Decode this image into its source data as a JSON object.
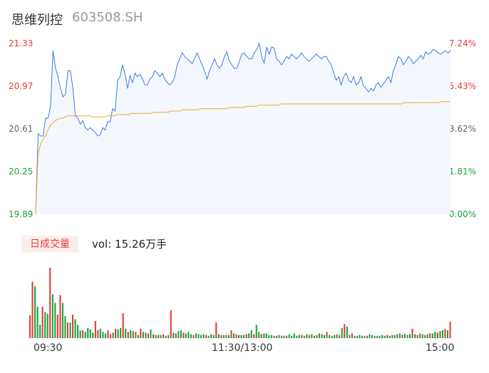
{
  "header": {
    "name": "思维列控",
    "code": "603508.SH"
  },
  "chart_data": {
    "type": "line",
    "price_axis": {
      "ticks": [
        "21.33",
        "20.97",
        "20.61",
        "20.25",
        "19.89"
      ],
      "min": 19.89,
      "max": 21.33
    },
    "pct_axis": {
      "ticks": [
        "7.24%",
        "5.43%",
        "3.62%",
        "1.81%",
        "0.00%"
      ]
    },
    "x_labels": [
      "09:30",
      "11:30/13:00",
      "15:00"
    ],
    "series": [
      {
        "role": "price",
        "color": "#3f7be0",
        "values": [
          19.89,
          20.57,
          20.55,
          20.55,
          20.7,
          20.7,
          20.8,
          21.27,
          21.12,
          21.05,
          20.95,
          20.88,
          20.9,
          21.1,
          21.1,
          20.95,
          20.72,
          20.7,
          20.65,
          20.68,
          20.62,
          20.6,
          20.62,
          20.6,
          20.58,
          20.55,
          20.56,
          20.62,
          20.6,
          20.67,
          20.67,
          20.78,
          20.76,
          21.02,
          21.05,
          21.15,
          21.07,
          20.95,
          21.06,
          21.0,
          21.08,
          21.05,
          21.07,
          21.03,
          20.98,
          20.98,
          21.03,
          21.05,
          21.1,
          21.08,
          21.05,
          21.08,
          21.03,
          21.0,
          20.98,
          21.0,
          21.05,
          21.15,
          21.2,
          21.25,
          21.22,
          21.2,
          21.18,
          21.16,
          21.2,
          21.25,
          21.2,
          21.15,
          21.1,
          21.03,
          21.1,
          21.15,
          21.2,
          21.15,
          21.12,
          21.15,
          21.22,
          21.26,
          21.18,
          21.15,
          21.12,
          21.12,
          21.18,
          21.24,
          21.25,
          21.22,
          21.2,
          21.2,
          21.25,
          21.28,
          21.33,
          21.22,
          21.16,
          21.3,
          21.24,
          21.3,
          21.29,
          21.2,
          21.18,
          21.15,
          21.18,
          21.22,
          21.2,
          21.24,
          21.22,
          21.2,
          21.22,
          21.25,
          21.22,
          21.2,
          21.18,
          21.2,
          21.22,
          21.24,
          21.22,
          21.2,
          21.22,
          21.22,
          21.18,
          21.15,
          21.08,
          21.02,
          21.05,
          20.98,
          21.05,
          21.08,
          21.02,
          21.0,
          21.05,
          20.98,
          21.0,
          21.05,
          20.97,
          20.95,
          20.92,
          20.95,
          20.93,
          20.98,
          21.0,
          20.96,
          20.99,
          21.02,
          21.05,
          21.0,
          21.1,
          21.15,
          21.22,
          21.2,
          21.15,
          21.18,
          21.22,
          21.2,
          21.16,
          21.18,
          21.2,
          21.23,
          21.2,
          21.26,
          21.24,
          21.25,
          21.28,
          21.27,
          21.25,
          21.24,
          21.25,
          21.27,
          21.25,
          21.27
        ]
      },
      {
        "role": "average",
        "color": "#f0a830",
        "values": [
          19.89,
          20.4,
          20.48,
          20.52,
          20.55,
          20.6,
          20.64,
          20.66,
          20.68,
          20.69,
          20.7,
          20.7,
          20.71,
          20.72,
          20.72,
          20.72,
          20.72,
          20.72,
          20.72,
          20.72,
          20.72,
          20.72,
          20.72,
          20.71,
          20.71,
          20.71,
          20.71,
          20.71,
          20.71,
          20.72,
          20.72,
          20.72,
          20.72,
          20.73,
          20.73,
          20.73,
          20.73,
          20.73,
          20.73,
          20.74,
          20.74,
          20.74,
          20.74,
          20.74,
          20.74,
          20.74,
          20.74,
          20.74,
          20.75,
          20.75,
          20.75,
          20.75,
          20.75,
          20.75,
          20.75,
          20.76,
          20.76,
          20.76,
          20.76,
          20.76,
          20.77,
          20.77,
          20.77,
          20.77,
          20.77,
          20.77,
          20.77,
          20.78,
          20.78,
          20.78,
          20.78,
          20.78,
          20.78,
          20.78,
          20.78,
          20.78,
          20.78,
          20.78,
          20.78,
          20.79,
          20.79,
          20.79,
          20.79,
          20.79,
          20.79,
          20.79,
          20.8,
          20.8,
          20.8,
          20.8,
          20.8,
          20.81,
          20.81,
          20.81,
          20.81,
          20.81,
          20.81,
          20.81,
          20.81,
          20.81,
          20.82,
          20.82,
          20.82,
          20.82,
          20.82,
          20.82,
          20.82,
          20.82,
          20.82,
          20.82,
          20.82,
          20.82,
          20.82,
          20.82,
          20.82,
          20.82,
          20.82,
          20.82,
          20.82,
          20.82,
          20.82,
          20.82,
          20.82,
          20.82,
          20.82,
          20.82,
          20.82,
          20.82,
          20.82,
          20.82,
          20.82,
          20.82,
          20.82,
          20.82,
          20.82,
          20.82,
          20.82,
          20.82,
          20.82,
          20.82,
          20.82,
          20.82,
          20.82,
          20.82,
          20.82,
          20.82,
          20.82,
          20.82,
          20.82,
          20.82,
          20.83,
          20.83,
          20.83,
          20.83,
          20.83,
          20.83,
          20.83,
          20.83,
          20.83,
          20.83,
          20.83,
          20.83,
          20.83,
          20.83,
          20.83,
          20.84,
          20.84,
          20.84,
          20.84,
          20.84
        ]
      }
    ],
    "volume": {
      "label": "日成交量",
      "summary": "vol: 15.26万手",
      "up_color": "#e83a3a",
      "down_color": "#1aa33a",
      "bars": [
        [
          0.29,
          1
        ],
        [
          0.72,
          1
        ],
        [
          0.66,
          0
        ],
        [
          0.4,
          0
        ],
        [
          0.17,
          0
        ],
        [
          0.4,
          1
        ],
        [
          0.33,
          0
        ],
        [
          0.31,
          0
        ],
        [
          0.9,
          1
        ],
        [
          0.56,
          0
        ],
        [
          0.45,
          0
        ],
        [
          0.3,
          1
        ],
        [
          0.55,
          1
        ],
        [
          0.45,
          0
        ],
        [
          0.28,
          0
        ],
        [
          0.2,
          1
        ],
        [
          0.2,
          0
        ],
        [
          0.3,
          1
        ],
        [
          0.24,
          0
        ],
        [
          0.17,
          0
        ],
        [
          0.1,
          0
        ],
        [
          0.1,
          1
        ],
        [
          0.08,
          0
        ],
        [
          0.13,
          0
        ],
        [
          0.11,
          0
        ],
        [
          0.07,
          0
        ],
        [
          0.22,
          1
        ],
        [
          0.1,
          1
        ],
        [
          0.12,
          0
        ],
        [
          0.08,
          0
        ],
        [
          0.06,
          0
        ],
        [
          0.1,
          1
        ],
        [
          0.05,
          1
        ],
        [
          0.07,
          0
        ],
        [
          0.12,
          1
        ],
        [
          0.11,
          0
        ],
        [
          0.13,
          0
        ],
        [
          0.32,
          1
        ],
        [
          0.12,
          0
        ],
        [
          0.08,
          1
        ],
        [
          0.1,
          0
        ],
        [
          0.09,
          0
        ],
        [
          0.08,
          1
        ],
        [
          0.04,
          0
        ],
        [
          0.12,
          1
        ],
        [
          0.08,
          0
        ],
        [
          0.07,
          0
        ],
        [
          0.06,
          1
        ],
        [
          0.11,
          0
        ],
        [
          0.05,
          0
        ],
        [
          0.04,
          1
        ],
        [
          0.04,
          0
        ],
        [
          0.04,
          0
        ],
        [
          0.05,
          1
        ],
        [
          0.03,
          0
        ],
        [
          0.04,
          0
        ],
        [
          0.36,
          1
        ],
        [
          0.07,
          0
        ],
        [
          0.06,
          1
        ],
        [
          0.09,
          0
        ],
        [
          0.1,
          0
        ],
        [
          0.07,
          1
        ],
        [
          0.06,
          0
        ],
        [
          0.08,
          0
        ],
        [
          0.05,
          0
        ],
        [
          0.04,
          1
        ],
        [
          0.06,
          0
        ],
        [
          0.05,
          0
        ],
        [
          0.04,
          0
        ],
        [
          0.05,
          0
        ],
        [
          0.04,
          1
        ],
        [
          0.03,
          0
        ],
        [
          0.05,
          0
        ],
        [
          0.04,
          0
        ],
        [
          0.2,
          1
        ],
        [
          0.05,
          0
        ],
        [
          0.04,
          0
        ],
        [
          0.04,
          1
        ],
        [
          0.04,
          0
        ],
        [
          0.04,
          0
        ],
        [
          0.1,
          1
        ],
        [
          0.06,
          0
        ],
        [
          0.05,
          0
        ],
        [
          0.04,
          1
        ],
        [
          0.04,
          0
        ],
        [
          0.04,
          0
        ],
        [
          0.05,
          1
        ],
        [
          0.06,
          0
        ],
        [
          0.1,
          0
        ],
        [
          0.05,
          1
        ],
        [
          0.17,
          0
        ],
        [
          0.08,
          0
        ],
        [
          0.05,
          1
        ],
        [
          0.06,
          0
        ],
        [
          0.06,
          0
        ],
        [
          0.04,
          0
        ],
        [
          0.04,
          0
        ],
        [
          0.03,
          1
        ],
        [
          0.03,
          0
        ],
        [
          0.04,
          0
        ],
        [
          0.03,
          0
        ],
        [
          0.03,
          1
        ],
        [
          0.03,
          0
        ],
        [
          0.05,
          0
        ],
        [
          0.03,
          0
        ],
        [
          0.06,
          0
        ],
        [
          0.03,
          0
        ],
        [
          0.04,
          0
        ],
        [
          0.04,
          1
        ],
        [
          0.03,
          0
        ],
        [
          0.05,
          0
        ],
        [
          0.04,
          1
        ],
        [
          0.05,
          0
        ],
        [
          0.03,
          0
        ],
        [
          0.04,
          1
        ],
        [
          0.06,
          0
        ],
        [
          0.05,
          0
        ],
        [
          0.04,
          0
        ],
        [
          0.08,
          1
        ],
        [
          0.04,
          0
        ],
        [
          0.03,
          0
        ],
        [
          0.04,
          0
        ],
        [
          0.05,
          1
        ],
        [
          0.04,
          0
        ],
        [
          0.13,
          0
        ],
        [
          0.18,
          1
        ],
        [
          0.15,
          0
        ],
        [
          0.04,
          0
        ],
        [
          0.06,
          1
        ],
        [
          0.03,
          0
        ],
        [
          0.03,
          0
        ],
        [
          0.04,
          0
        ],
        [
          0.03,
          0
        ],
        [
          0.03,
          1
        ],
        [
          0.03,
          0
        ],
        [
          0.05,
          0
        ],
        [
          0.04,
          0
        ],
        [
          0.03,
          1
        ],
        [
          0.03,
          0
        ],
        [
          0.03,
          0
        ],
        [
          0.04,
          0
        ],
        [
          0.03,
          0
        ],
        [
          0.04,
          1
        ],
        [
          0.03,
          0
        ],
        [
          0.04,
          0
        ],
        [
          0.04,
          1
        ],
        [
          0.05,
          0
        ],
        [
          0.06,
          0
        ],
        [
          0.04,
          1
        ],
        [
          0.05,
          0
        ],
        [
          0.04,
          0
        ],
        [
          0.05,
          0
        ],
        [
          0.12,
          1
        ],
        [
          0.05,
          0
        ],
        [
          0.04,
          0
        ],
        [
          0.06,
          1
        ],
        [
          0.05,
          0
        ],
        [
          0.04,
          0
        ],
        [
          0.05,
          0
        ],
        [
          0.06,
          1
        ],
        [
          0.06,
          0
        ],
        [
          0.08,
          0
        ],
        [
          0.07,
          1
        ],
        [
          0.09,
          0
        ],
        [
          0.1,
          0
        ],
        [
          0.12,
          1
        ],
        [
          0.1,
          0
        ],
        [
          0.21,
          1
        ]
      ]
    }
  }
}
